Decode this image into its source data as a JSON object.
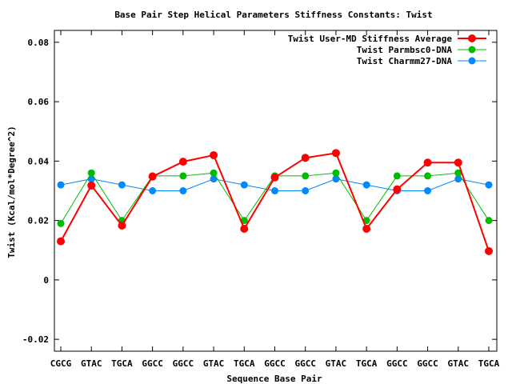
{
  "chart_data": {
    "type": "line",
    "title": "Base Pair Step Helical Parameters Stiffness Constants: Twist",
    "xlabel": "Sequence Base Pair",
    "ylabel": "Twist (Kcal/mol*Degree^2)",
    "ylim": [
      -0.024,
      0.084
    ],
    "yticks": [
      -0.02,
      0,
      0.02,
      0.04,
      0.06,
      0.08
    ],
    "ytick_labels": [
      "-0.02",
      "0",
      "0.02",
      "0.04",
      "0.06",
      "0.08"
    ],
    "categories": [
      "CGCG",
      "GTAC",
      "TGCA",
      "GGCC",
      "GGCC",
      "GTAC",
      "TGCA",
      "GGCC",
      "GGCC",
      "GTAC",
      "TGCA",
      "GGCC",
      "GGCC",
      "GTAC",
      "TGCA"
    ],
    "grid": false,
    "legend_position": "top-right",
    "series": [
      {
        "name": "Twist User-MD Stiffness Average",
        "color": "#ff0000",
        "values": [
          0.013,
          0.0318,
          0.0183,
          0.0348,
          0.0398,
          0.042,
          0.0172,
          0.0345,
          0.0411,
          0.0427,
          0.0172,
          0.0305,
          0.0395,
          0.0395,
          0.0097
        ]
      },
      {
        "name": "Twist Parmbsc0-DNA",
        "color": "#00bb00",
        "values": [
          0.019,
          0.036,
          0.02,
          0.035,
          0.035,
          0.036,
          0.02,
          0.035,
          0.035,
          0.036,
          0.02,
          0.035,
          0.035,
          0.036,
          0.02
        ]
      },
      {
        "name": "Twist Charmm27-DNA",
        "color": "#0088ff",
        "values": [
          0.032,
          0.034,
          0.032,
          0.03,
          0.03,
          0.034,
          0.032,
          0.03,
          0.03,
          0.034,
          0.032,
          0.03,
          0.03,
          0.034,
          0.032
        ]
      }
    ]
  }
}
